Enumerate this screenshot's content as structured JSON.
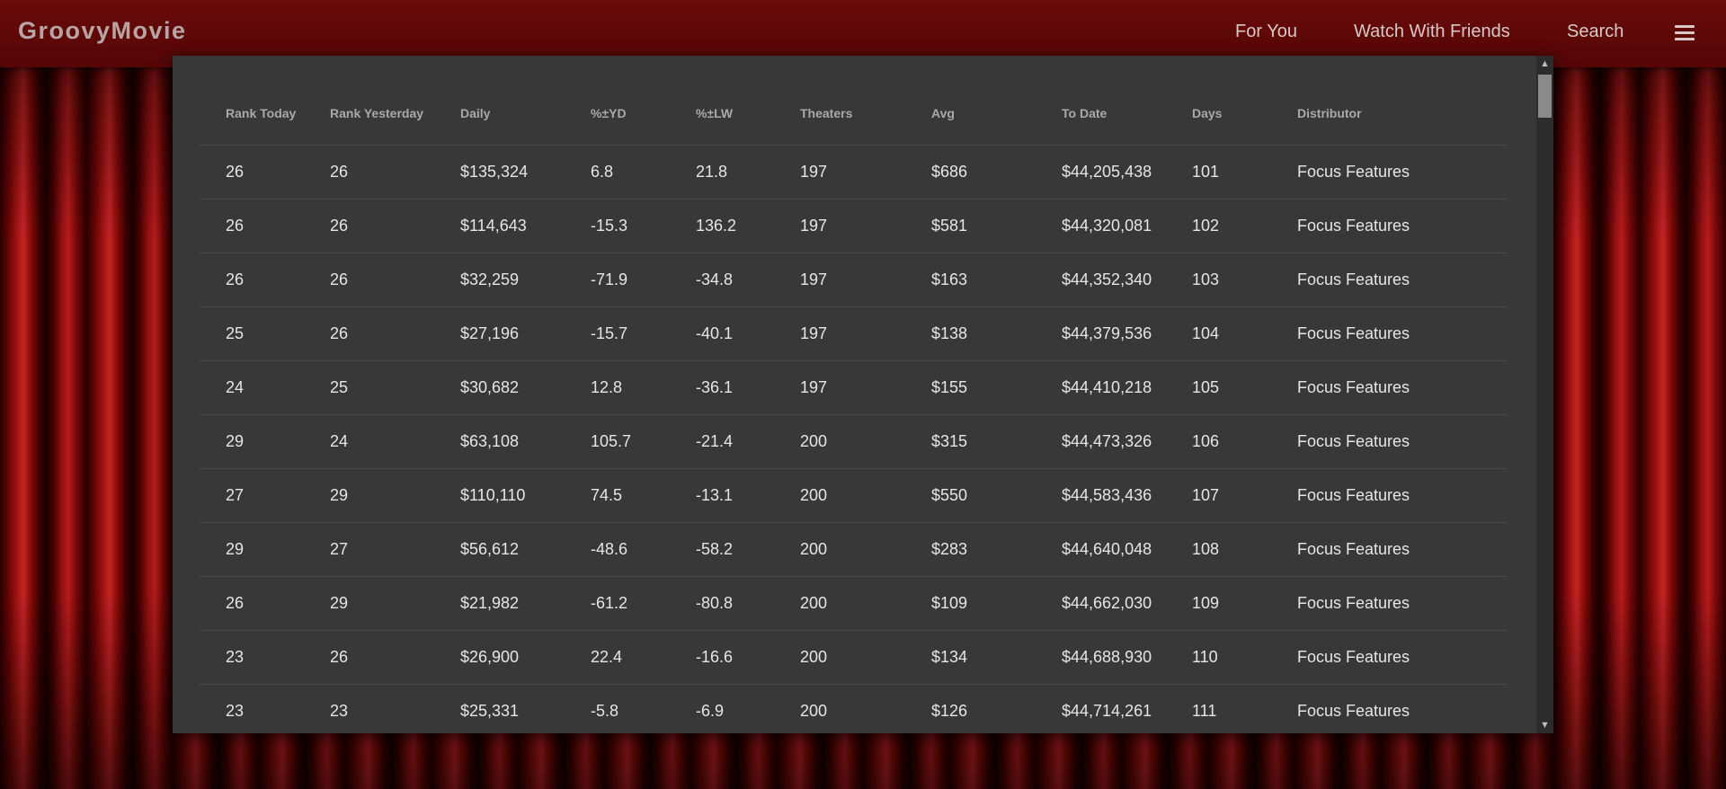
{
  "header": {
    "brand": "GroovyMovie",
    "nav": {
      "for_you": "For You",
      "watch_with_friends": "Watch With Friends",
      "search": "Search"
    },
    "menu_icon": "hamburger-menu-icon"
  },
  "table": {
    "columns": [
      "Rank Today",
      "Rank Yesterday",
      "Daily",
      "%±YD",
      "%±LW",
      "Theaters",
      "Avg",
      "To Date",
      "Days",
      "Distributor"
    ],
    "rows": [
      [
        "26",
        "26",
        "$135,324",
        "6.8",
        "21.8",
        "197",
        "$686",
        "$44,205,438",
        "101",
        "Focus Features"
      ],
      [
        "26",
        "26",
        "$114,643",
        "-15.3",
        "136.2",
        "197",
        "$581",
        "$44,320,081",
        "102",
        "Focus Features"
      ],
      [
        "26",
        "26",
        "$32,259",
        "-71.9",
        "-34.8",
        "197",
        "$163",
        "$44,352,340",
        "103",
        "Focus Features"
      ],
      [
        "25",
        "26",
        "$27,196",
        "-15.7",
        "-40.1",
        "197",
        "$138",
        "$44,379,536",
        "104",
        "Focus Features"
      ],
      [
        "24",
        "25",
        "$30,682",
        "12.8",
        "-36.1",
        "197",
        "$155",
        "$44,410,218",
        "105",
        "Focus Features"
      ],
      [
        "29",
        "24",
        "$63,108",
        "105.7",
        "-21.4",
        "200",
        "$315",
        "$44,473,326",
        "106",
        "Focus Features"
      ],
      [
        "27",
        "29",
        "$110,110",
        "74.5",
        "-13.1",
        "200",
        "$550",
        "$44,583,436",
        "107",
        "Focus Features"
      ],
      [
        "29",
        "27",
        "$56,612",
        "-48.6",
        "-58.2",
        "200",
        "$283",
        "$44,640,048",
        "108",
        "Focus Features"
      ],
      [
        "26",
        "29",
        "$21,982",
        "-61.2",
        "-80.8",
        "200",
        "$109",
        "$44,662,030",
        "109",
        "Focus Features"
      ],
      [
        "23",
        "26",
        "$26,900",
        "22.4",
        "-16.6",
        "200",
        "$134",
        "$44,688,930",
        "110",
        "Focus Features"
      ],
      [
        "23",
        "23",
        "$25,331",
        "-5.8",
        "-6.9",
        "200",
        "$126",
        "$44,714,261",
        "111",
        "Focus Features"
      ]
    ]
  },
  "scrollbar": {
    "up_icon": "▲",
    "down_icon": "▼"
  }
}
